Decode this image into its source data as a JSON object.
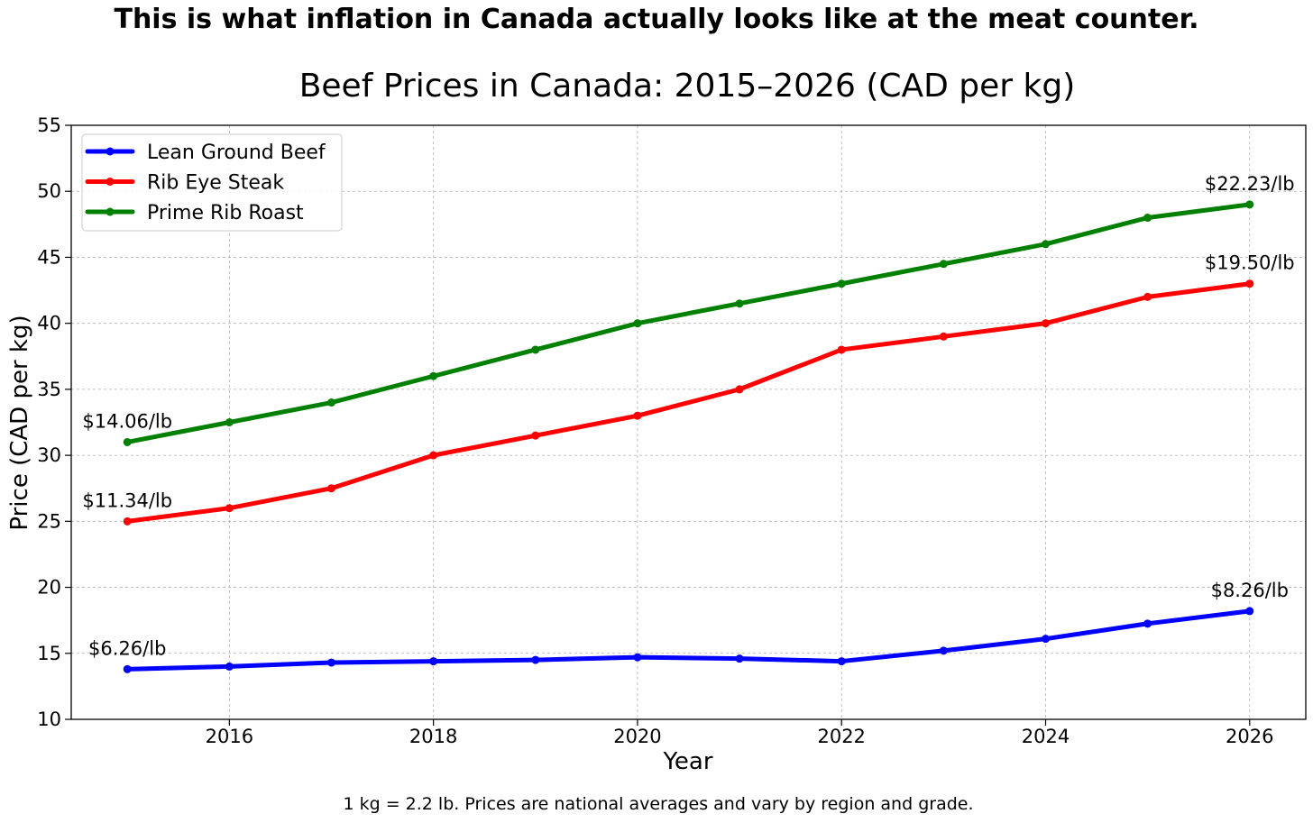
{
  "headline": "This is what inflation in Canada actually looks like at the meat counter.",
  "footnote": "1 kg = 2.2 lb. Prices are national averages and vary by region and grade.",
  "chart_data": {
    "type": "line",
    "title": "Beef Prices in Canada: 2015–2026 (CAD per kg)",
    "xlabel": "Year",
    "ylabel": "Price (CAD per kg)",
    "x": [
      2015,
      2016,
      2017,
      2018,
      2019,
      2020,
      2021,
      2022,
      2023,
      2024,
      2025,
      2026
    ],
    "xlim": [
      2014.45,
      2026.55
    ],
    "ylim": [
      10,
      55
    ],
    "xticks": [
      2016,
      2018,
      2020,
      2022,
      2024,
      2026
    ],
    "yticks": [
      10,
      15,
      20,
      25,
      30,
      35,
      40,
      45,
      50,
      55
    ],
    "grid": true,
    "legend_position": "top-left",
    "series": [
      {
        "name": "Lean Ground Beef",
        "color": "#0000ff",
        "values": [
          13.8,
          14.0,
          14.3,
          14.4,
          14.5,
          14.7,
          14.6,
          14.4,
          15.2,
          16.1,
          17.25,
          18.2
        ]
      },
      {
        "name": "Rib Eye Steak",
        "color": "#ff0000",
        "values": [
          25.0,
          26.0,
          27.5,
          30.0,
          31.5,
          33.0,
          35.0,
          38.0,
          39.0,
          40.0,
          42.0,
          43.0
        ]
      },
      {
        "name": "Prime Rib Roast",
        "color": "#008000",
        "values": [
          31.0,
          32.5,
          34.0,
          36.0,
          38.0,
          40.0,
          41.5,
          43.0,
          44.5,
          46.0,
          48.0,
          49.0
        ]
      }
    ],
    "annotations": [
      {
        "text": "$14.06/lb",
        "x": 2015,
        "y": 31.0
      },
      {
        "text": "$11.34/lb",
        "x": 2015,
        "y": 25.0
      },
      {
        "text": "$6.26/lb",
        "x": 2015,
        "y": 13.8
      },
      {
        "text": "$22.23/lb",
        "x": 2026,
        "y": 49.0
      },
      {
        "text": "$19.50/lb",
        "x": 2026,
        "y": 43.0
      },
      {
        "text": "$8.26/lb",
        "x": 2026,
        "y": 18.2
      }
    ]
  }
}
